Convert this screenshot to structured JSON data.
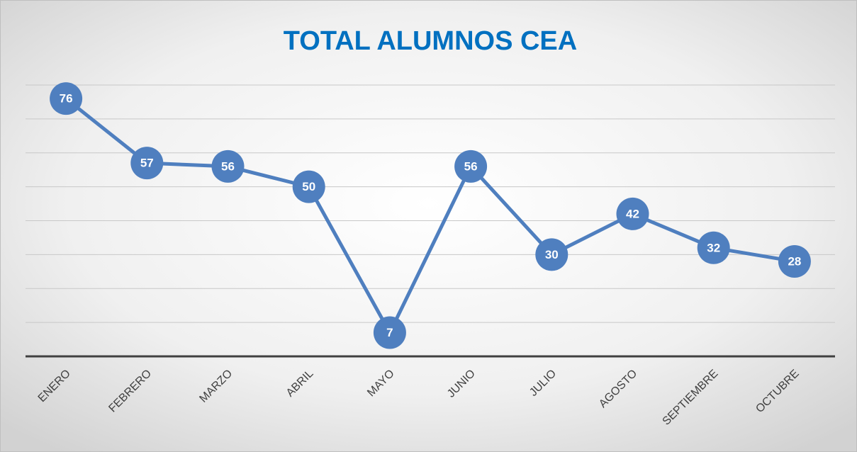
{
  "chart_data": {
    "type": "line",
    "title": "TOTAL ALUMNOS CEA",
    "categories": [
      "ENERO",
      "FEBRERO",
      "MARZO",
      "ABRIL",
      "MAYO",
      "JUNIO",
      "JULIO",
      "AGOSTO",
      "SEPTIEMBRE",
      "OCTUBRE"
    ],
    "values": [
      76,
      57,
      56,
      50,
      7,
      56,
      30,
      42,
      32,
      28
    ],
    "color": "#4f7fbf",
    "ylim": [
      0,
      80
    ],
    "yticks": [
      0,
      10,
      20,
      30,
      40,
      50,
      60,
      70,
      80
    ],
    "grid": true
  }
}
